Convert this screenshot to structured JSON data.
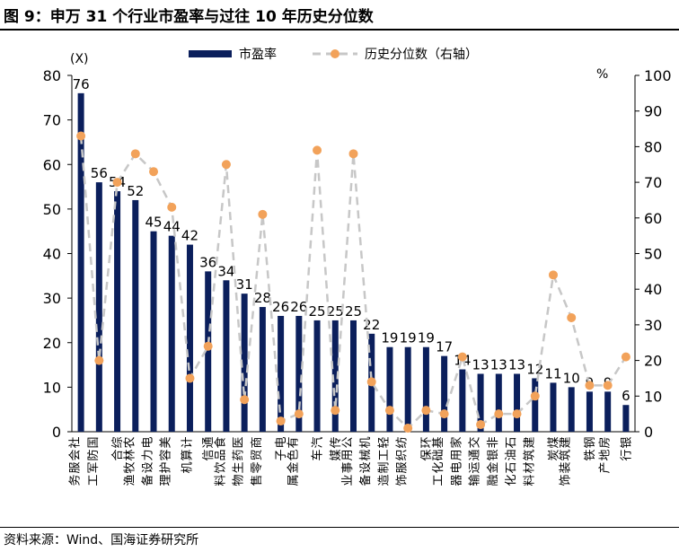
{
  "title": "图 9：申万 31 个行业市盈率与过往 10 年历史分位数",
  "source": "资料来源：Wind、国海证券研究所",
  "colors": {
    "bar": "#0b1f5c",
    "line": "#c7c7c7",
    "dot": "#f2a25a"
  },
  "chart_data": {
    "type": "bar",
    "categories": [
      "社会服务",
      "国防军工",
      "综合",
      "农林牧渔",
      "电力设备",
      "美容护理",
      "计算机",
      "通信",
      "食品饮料",
      "医药生物",
      "商贸零售",
      "电子",
      "有色金属",
      "汽车",
      "传媒",
      "公用事业",
      "机械设备",
      "轻工制造",
      "纺织服饰",
      "环保",
      "基础化工",
      "家用电器",
      "交通运输",
      "非银金融",
      "石油石化",
      "建筑材料",
      "煤炭",
      "建筑装饰",
      "钢铁",
      "房地产",
      "银行"
    ],
    "series": [
      {
        "name": "市盈率",
        "type": "bar",
        "axis": "left",
        "values": [
          76,
          56,
          54,
          52,
          45,
          44,
          42,
          36,
          34,
          31,
          28,
          26,
          26,
          25,
          25,
          25,
          22,
          19,
          19,
          19,
          17,
          14,
          13,
          13,
          13,
          12,
          11,
          10,
          9,
          9,
          6
        ],
        "labels": [
          "76",
          "56",
          "54",
          "52",
          "45",
          "44",
          "42",
          "36",
          "34",
          "31",
          "28",
          "26",
          "26",
          "25",
          "25",
          "25",
          "22",
          "19",
          "19",
          "19",
          "17",
          "14",
          "13",
          "13",
          "13",
          "12",
          "11",
          "10",
          "9",
          "9",
          "6"
        ]
      },
      {
        "name": "历史分位数（右轴）",
        "type": "line",
        "axis": "right",
        "values": [
          83,
          20,
          70,
          78,
          73,
          63,
          15,
          24,
          75,
          9,
          61,
          3,
          5,
          79,
          6,
          78,
          14,
          6,
          1,
          6,
          5,
          21,
          2,
          5,
          5,
          10,
          44,
          32,
          13,
          13,
          21
        ]
      }
    ],
    "y_left": {
      "min": 0,
      "max": 80,
      "ticks": [
        "0",
        "10",
        "20",
        "30",
        "40",
        "50",
        "60",
        "70",
        "80"
      ],
      "unit": "(X)"
    },
    "y_right": {
      "min": 0,
      "max": 100,
      "ticks": [
        "0",
        "10",
        "20",
        "30",
        "40",
        "50",
        "60",
        "70",
        "80",
        "90",
        "100"
      ],
      "unit": "%"
    },
    "legend_position": "top-center",
    "grid": false
  }
}
